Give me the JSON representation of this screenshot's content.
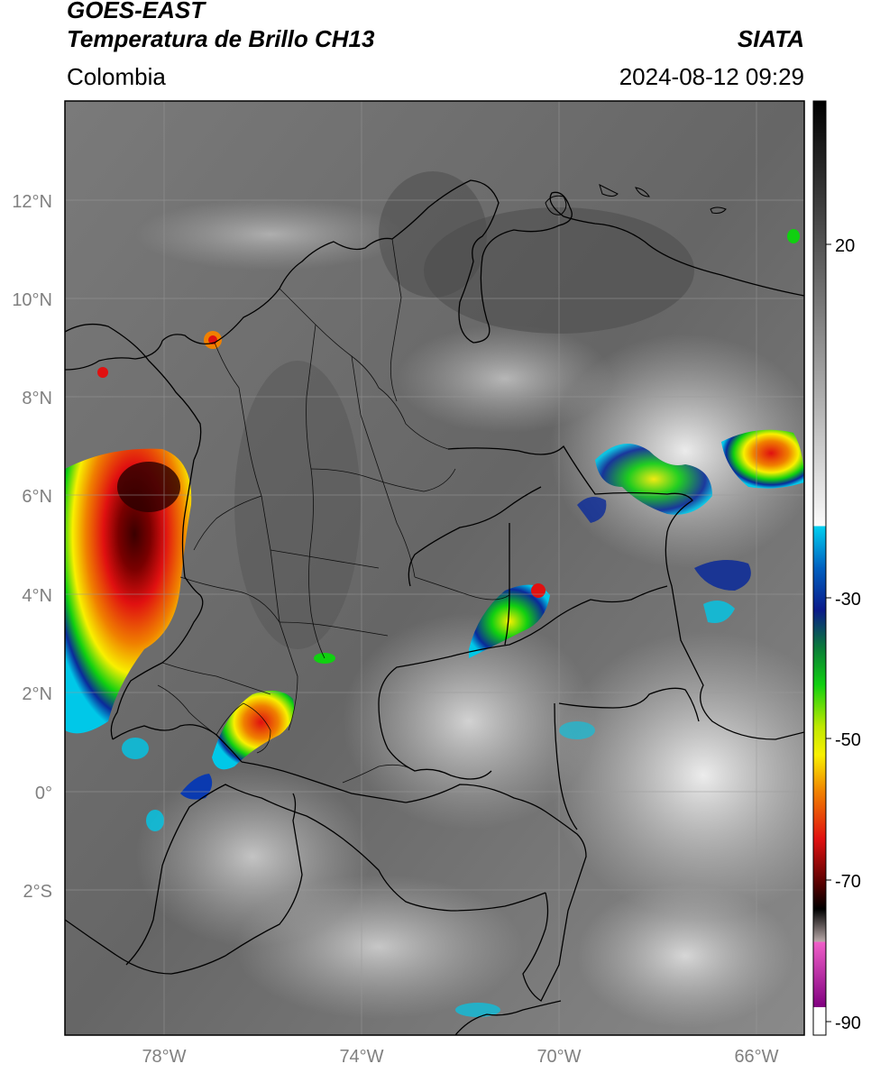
{
  "header": {
    "satellite": "GOES-EAST",
    "product": "Temperatura de Brillo CH13",
    "region": "Colombia",
    "source": "SIATA",
    "datetime": "2024-08-12 09:29"
  },
  "map": {
    "lat_ticks": [
      "12°N",
      "10°N",
      "8°N",
      "6°N",
      "4°N",
      "2°N",
      "0°",
      "2°S"
    ],
    "lon_ticks": [
      "78°W",
      "74°W",
      "70°W",
      "66°W"
    ],
    "background_color": "#6e6e6e",
    "border_color": "#000000",
    "grid_color": "#9a9a9a"
  },
  "colorbar": {
    "tick_labels": [
      "20",
      "-30",
      "-50",
      "-70",
      "-90"
    ],
    "colors": {
      "warm_top": "#000000",
      "warm_bottom": "#ffffff",
      "cyan": "#00c8e8",
      "blue": "#0a2a9a",
      "green": "#10d010",
      "yellow": "#f8f000",
      "orange": "#f08000",
      "red": "#e01010",
      "dark_red": "#5a0000",
      "pink": "#e050c0",
      "purple": "#800080"
    }
  }
}
